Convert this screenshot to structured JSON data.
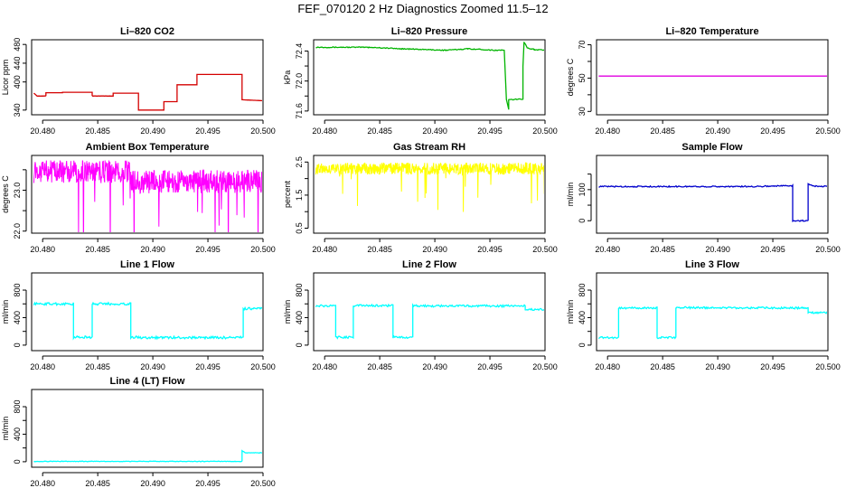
{
  "title": "FEF_070120  2 Hz Diagnostics Zoomed 11.5–12",
  "chart_data": [
    {
      "type": "line",
      "title": "Li–820 CO2",
      "ylabel": "Licor ppm",
      "xlabel": "",
      "xlim": [
        20.479,
        20.5
      ],
      "ylim": [
        330,
        490
      ],
      "xticks": [
        20.48,
        20.485,
        20.49,
        20.495,
        20.5
      ],
      "xtick_labels": [
        "20.480",
        "20.485",
        "20.490",
        "20.495",
        "20.500"
      ],
      "yticks": [
        340,
        400,
        440,
        480
      ],
      "ytick_labels": [
        "340",
        "400",
        "440",
        "480"
      ],
      "series": [
        {
          "color": "#d40000",
          "noise": 0.012,
          "x": [
            20.4792,
            20.4795,
            20.4803,
            20.4803,
            20.4818,
            20.4818,
            20.4845,
            20.4845,
            20.4864,
            20.4864,
            20.4887,
            20.4887,
            20.4896,
            20.4896,
            20.491,
            20.491,
            20.4922,
            20.4922,
            20.494,
            20.494,
            20.4981,
            20.4981,
            20.5
          ],
          "y": [
            376,
            370,
            370,
            377,
            377,
            378,
            378,
            370,
            370,
            376,
            376,
            340,
            340,
            340,
            340,
            358,
            358,
            394,
            394,
            416,
            416,
            362,
            360
          ]
        }
      ]
    },
    {
      "type": "line",
      "title": "Li–820 Pressure",
      "ylabel": "kPa",
      "xlabel": "",
      "xlim": [
        20.479,
        20.5
      ],
      "ylim": [
        71.55,
        72.55
      ],
      "xticks": [
        20.48,
        20.485,
        20.49,
        20.495,
        20.5
      ],
      "xtick_labels": [
        "20.480",
        "20.485",
        "20.490",
        "20.495",
        "20.500"
      ],
      "yticks": [
        71.6,
        71.8,
        72.0,
        72.2,
        72.4
      ],
      "ytick_labels": [
        "71.6",
        "",
        "72.0",
        "",
        "72.4"
      ],
      "series": [
        {
          "color": "#00b400",
          "noise": 0.006,
          "x": [
            20.4792,
            20.484,
            20.487,
            20.491,
            20.493,
            20.4955,
            20.4963,
            20.4965,
            20.4967,
            20.4967,
            20.498,
            20.498,
            20.4981,
            20.4984,
            20.499,
            20.5
          ],
          "y": [
            72.45,
            72.45,
            72.43,
            72.41,
            72.43,
            72.41,
            72.41,
            71.75,
            71.62,
            71.75,
            71.76,
            72.2,
            72.52,
            72.44,
            72.42,
            72.41
          ]
        }
      ]
    },
    {
      "type": "line",
      "title": "Li–820 Temperature",
      "ylabel": "degrees C",
      "xlabel": "",
      "xlim": [
        20.479,
        20.5
      ],
      "ylim": [
        28,
        73
      ],
      "xticks": [
        20.48,
        20.485,
        20.49,
        20.495,
        20.5
      ],
      "xtick_labels": [
        "20.480",
        "20.485",
        "20.490",
        "20.495",
        "20.500"
      ],
      "yticks": [
        30,
        40,
        50,
        60,
        70
      ],
      "ytick_labels": [
        "30",
        "",
        "50",
        "",
        "70"
      ],
      "series": [
        {
          "color": "#e000e0",
          "noise": 0,
          "x": [
            20.4792,
            20.5
          ],
          "y": [
            51.2,
            51.2
          ]
        }
      ]
    },
    {
      "type": "line",
      "title": "Ambient Box Temperature",
      "ylabel": "degrees C",
      "xlabel": "",
      "xlim": [
        20.479,
        20.5
      ],
      "ylim": [
        21.95,
        23.85
      ],
      "xticks": [
        20.48,
        20.485,
        20.49,
        20.495,
        20.5
      ],
      "xtick_labels": [
        "20.480",
        "20.485",
        "20.490",
        "20.495",
        "20.500"
      ],
      "yticks": [
        22.0,
        22.5,
        23.0,
        23.5
      ],
      "ytick_labels": [
        "22.0",
        "",
        "23.0",
        ""
      ],
      "series": [
        {
          "color": "#ff00ff",
          "noise": 0.28,
          "dense": true,
          "x": [
            20.4792,
            20.488,
            20.488,
            20.5
          ],
          "y": [
            23.45,
            23.45,
            23.2,
            23.22
          ]
        }
      ]
    },
    {
      "type": "line",
      "title": "Gas Stream RH",
      "ylabel": "percent",
      "xlabel": "",
      "xlim": [
        20.479,
        20.5
      ],
      "ylim": [
        0.35,
        2.7
      ],
      "xticks": [
        20.48,
        20.485,
        20.49,
        20.495,
        20.5
      ],
      "xtick_labels": [
        "20.480",
        "20.485",
        "20.490",
        "20.495",
        "20.500"
      ],
      "yticks": [
        0.5,
        1.0,
        1.5,
        2.0,
        2.5
      ],
      "ytick_labels": [
        "0.5",
        "",
        "1.5",
        "",
        "2.5"
      ],
      "series": [
        {
          "color": "#ffff00",
          "noise": 0.18,
          "dense": true,
          "x": [
            20.4792,
            20.5
          ],
          "y": [
            2.3,
            2.3
          ]
        }
      ]
    },
    {
      "type": "line",
      "title": "Sample Flow",
      "ylabel": "ml/min",
      "xlabel": "",
      "xlim": [
        20.479,
        20.5
      ],
      "ylim": [
        -40,
        210
      ],
      "xticks": [
        20.48,
        20.485,
        20.49,
        20.495,
        20.5
      ],
      "xtick_labels": [
        "20.480",
        "20.485",
        "20.490",
        "20.495",
        "20.500"
      ],
      "yticks": [
        0,
        50,
        100,
        150
      ],
      "ytick_labels": [
        "0",
        "",
        "100",
        ""
      ],
      "series": [
        {
          "color": "#0000cc",
          "noise": 2,
          "x": [
            20.4792,
            20.493,
            20.4968,
            20.4968,
            20.4982,
            20.4982,
            20.4986,
            20.5
          ],
          "y": [
            110,
            110,
            113,
            0,
            0,
            118,
            112,
            110
          ]
        }
      ]
    },
    {
      "type": "line",
      "title": "Line 1 Flow",
      "ylabel": "ml/min",
      "xlabel": "",
      "xlim": [
        20.479,
        20.5
      ],
      "ylim": [
        -80,
        1050
      ],
      "xticks": [
        20.48,
        20.485,
        20.49,
        20.495,
        20.5
      ],
      "xtick_labels": [
        "20.480",
        "20.485",
        "20.490",
        "20.495",
        "20.500"
      ],
      "yticks": [
        0,
        200,
        400,
        600,
        800
      ],
      "ytick_labels": [
        "0",
        "",
        "400",
        "",
        "800"
      ],
      "series": [
        {
          "color": "#00ffff",
          "noise": 18,
          "x": [
            20.4792,
            20.4828,
            20.4828,
            20.4845,
            20.4845,
            20.488,
            20.488,
            20.4887,
            20.4887,
            20.4982,
            20.4982,
            20.5
          ],
          "y": [
            600,
            600,
            115,
            115,
            600,
            600,
            115,
            115,
            110,
            110,
            530,
            530
          ]
        }
      ]
    },
    {
      "type": "line",
      "title": "Line 2 Flow",
      "ylabel": "ml/min",
      "xlabel": "",
      "xlim": [
        20.479,
        20.5
      ],
      "ylim": [
        -80,
        1050
      ],
      "xticks": [
        20.48,
        20.485,
        20.49,
        20.495,
        20.5
      ],
      "xtick_labels": [
        "20.480",
        "20.485",
        "20.490",
        "20.495",
        "20.500"
      ],
      "yticks": [
        0,
        200,
        400,
        600,
        800
      ],
      "ytick_labels": [
        "0",
        "",
        "400",
        "",
        "800"
      ],
      "series": [
        {
          "color": "#00ffff",
          "noise": 15,
          "x": [
            20.4792,
            20.481,
            20.481,
            20.4826,
            20.4826,
            20.4862,
            20.4862,
            20.488,
            20.488,
            20.4982,
            20.4982,
            20.5
          ],
          "y": [
            570,
            570,
            115,
            115,
            575,
            575,
            115,
            115,
            570,
            570,
            520,
            520
          ]
        }
      ]
    },
    {
      "type": "line",
      "title": "Line 3 Flow",
      "ylabel": "ml/min",
      "xlabel": "",
      "xlim": [
        20.479,
        20.5
      ],
      "ylim": [
        -80,
        1050
      ],
      "xticks": [
        20.48,
        20.485,
        20.49,
        20.495,
        20.5
      ],
      "xtick_labels": [
        "20.480",
        "20.485",
        "20.490",
        "20.495",
        "20.500"
      ],
      "yticks": [
        0,
        200,
        400,
        600,
        800
      ],
      "ytick_labels": [
        "0",
        "",
        "400",
        "",
        "800"
      ],
      "series": [
        {
          "color": "#00ffff",
          "noise": 14,
          "x": [
            20.4792,
            20.481,
            20.481,
            20.4845,
            20.4845,
            20.4862,
            20.4862,
            20.4982,
            20.4982,
            20.5
          ],
          "y": [
            110,
            110,
            540,
            540,
            110,
            110,
            545,
            540,
            470,
            470
          ]
        }
      ]
    },
    {
      "type": "line",
      "title": "Line 4 (LT) Flow",
      "ylabel": "ml/min",
      "xlabel": "",
      "xlim": [
        20.479,
        20.5
      ],
      "ylim": [
        -80,
        1050
      ],
      "xticks": [
        20.48,
        20.485,
        20.49,
        20.495,
        20.5
      ],
      "xtick_labels": [
        "20.480",
        "20.485",
        "20.490",
        "20.495",
        "20.500"
      ],
      "yticks": [
        0,
        200,
        400,
        600,
        800
      ],
      "ytick_labels": [
        "0",
        "",
        "400",
        "",
        "800"
      ],
      "series": [
        {
          "color": "#00ffff",
          "noise": 4,
          "x": [
            20.4792,
            20.4981,
            20.4981,
            20.4984,
            20.5
          ],
          "y": [
            5,
            5,
            160,
            130,
            130
          ]
        }
      ]
    }
  ]
}
